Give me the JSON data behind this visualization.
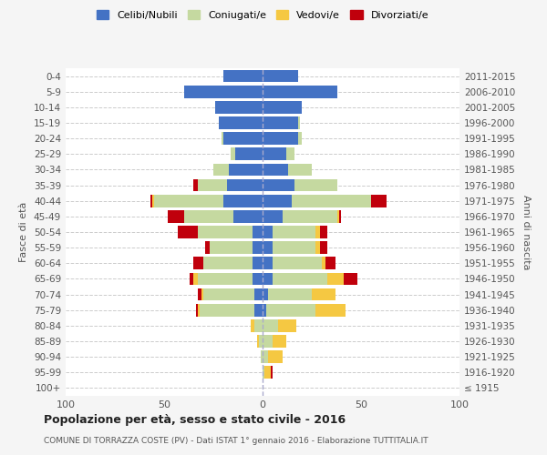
{
  "age_groups": [
    "100+",
    "95-99",
    "90-94",
    "85-89",
    "80-84",
    "75-79",
    "70-74",
    "65-69",
    "60-64",
    "55-59",
    "50-54",
    "45-49",
    "40-44",
    "35-39",
    "30-34",
    "25-29",
    "20-24",
    "15-19",
    "10-14",
    "5-9",
    "0-4"
  ],
  "birth_years": [
    "≤ 1915",
    "1916-1920",
    "1921-1925",
    "1926-1930",
    "1931-1935",
    "1936-1940",
    "1941-1945",
    "1946-1950",
    "1951-1955",
    "1956-1960",
    "1961-1965",
    "1966-1970",
    "1971-1975",
    "1976-1980",
    "1981-1985",
    "1986-1990",
    "1991-1995",
    "1996-2000",
    "2001-2005",
    "2006-2010",
    "2011-2015"
  ],
  "male": {
    "celibi": [
      0,
      0,
      0,
      0,
      0,
      4,
      4,
      5,
      5,
      5,
      5,
      15,
      20,
      18,
      17,
      14,
      20,
      22,
      24,
      40,
      20
    ],
    "coniugati": [
      0,
      0,
      1,
      2,
      4,
      28,
      26,
      28,
      25,
      22,
      28,
      25,
      35,
      15,
      8,
      2,
      1,
      0,
      0,
      0,
      0
    ],
    "vedovi": [
      0,
      0,
      0,
      1,
      2,
      1,
      1,
      2,
      0,
      0,
      0,
      0,
      1,
      0,
      0,
      0,
      0,
      0,
      0,
      0,
      0
    ],
    "divorziati": [
      0,
      0,
      0,
      0,
      0,
      1,
      2,
      2,
      5,
      2,
      10,
      8,
      1,
      2,
      0,
      0,
      0,
      0,
      0,
      0,
      0
    ]
  },
  "female": {
    "nubili": [
      0,
      0,
      0,
      0,
      0,
      2,
      3,
      5,
      5,
      5,
      5,
      10,
      15,
      16,
      13,
      12,
      18,
      18,
      20,
      38,
      18
    ],
    "coniugate": [
      0,
      1,
      3,
      5,
      8,
      25,
      22,
      28,
      25,
      22,
      22,
      28,
      40,
      22,
      12,
      4,
      2,
      1,
      0,
      0,
      0
    ],
    "vedove": [
      0,
      3,
      7,
      7,
      9,
      15,
      12,
      8,
      2,
      2,
      2,
      1,
      0,
      0,
      0,
      0,
      0,
      0,
      0,
      0,
      0
    ],
    "divorziate": [
      0,
      1,
      0,
      0,
      0,
      0,
      0,
      7,
      5,
      4,
      4,
      1,
      8,
      0,
      0,
      0,
      0,
      0,
      0,
      0,
      0
    ]
  },
  "colors": {
    "celibi": "#4472C4",
    "coniugati": "#C5D9A0",
    "vedovi": "#F5C842",
    "divorziati": "#C0000C"
  },
  "xlim": 100,
  "title": "Popolazione per età, sesso e stato civile - 2016",
  "subtitle": "COMUNE DI TORRAZZA COSTE (PV) - Dati ISTAT 1° gennaio 2016 - Elaborazione TUTTITALIA.IT",
  "ylabel_left": "Fasce di età",
  "ylabel_right": "Anni di nascita",
  "bg_color": "#f5f5f5",
  "plot_bg": "#ffffff",
  "grid_color": "#cccccc"
}
